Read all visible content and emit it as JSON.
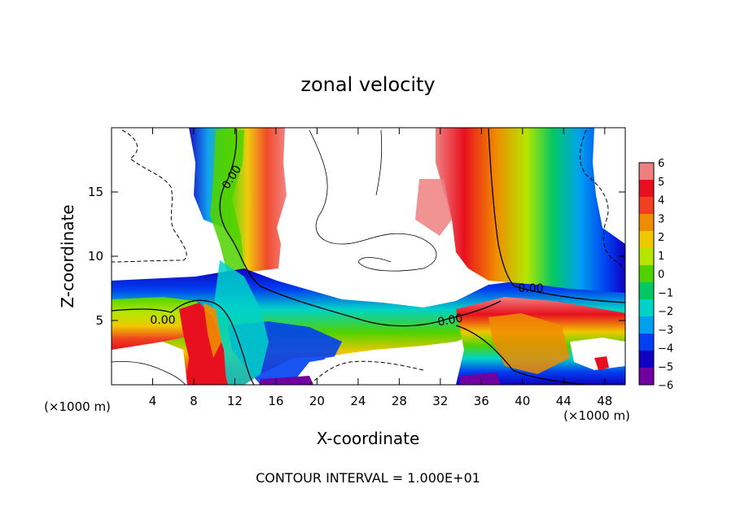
{
  "chart_data": {
    "type": "heatmap",
    "title": "zonal velocity",
    "xlabel": "X-coordinate",
    "ylabel": "Z-coordinate",
    "x_unit": "(×1000 m)",
    "footer": "CONTOUR INTERVAL = 1.000E+01",
    "xlim": [
      0,
      50
    ],
    "ylim": [
      0,
      20
    ],
    "x_ticks": [
      4,
      8,
      12,
      16,
      20,
      24,
      28,
      32,
      36,
      40,
      44,
      48
    ],
    "y_ticks": [
      5,
      10,
      15
    ],
    "colorbar": {
      "ticks": [
        6,
        5,
        4,
        3,
        2,
        1,
        0,
        -1,
        -2,
        -3,
        -4,
        -5,
        -6
      ],
      "colors": [
        "#f08080",
        "#e8101e",
        "#f04020",
        "#f08c00",
        "#f0c800",
        "#b4e600",
        "#50d200",
        "#00c864",
        "#00d2c8",
        "#00a0f0",
        "#0040f0",
        "#1000c0",
        "#7000a0"
      ]
    },
    "contour_labels": [
      "0.00",
      "0.00",
      "0.00",
      "0.00"
    ],
    "grid": false
  }
}
